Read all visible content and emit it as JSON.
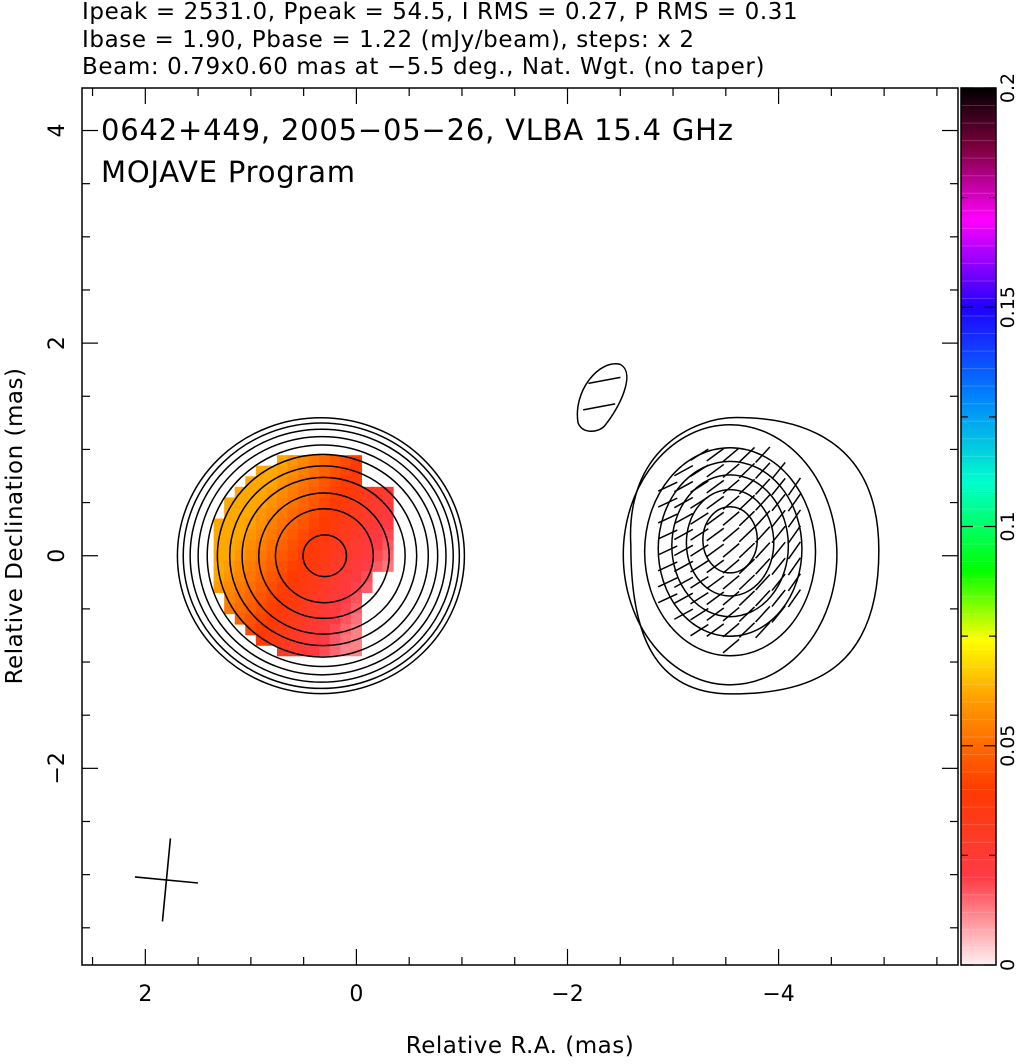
{
  "header": {
    "line1": "Ipeak = 2531.0, Ppeak = 54.5, I RMS = 0.27, P RMS = 0.31",
    "line2": "Ibase = 1.90, Pbase = 1.22 (mJy/beam), steps: x 2",
    "line3": "Beam: 0.79x0.60 mas at −5.5 deg., Nat. Wgt. (no taper)"
  },
  "plot": {
    "source_label": "0642+449, 2005−05−26, VLBA 15.4 GHz",
    "program_label": "MOJAVE Program"
  },
  "chart_data": {
    "type": "heatmap",
    "title": "0642+449, 2005−05−26, VLBA 15.4 GHz",
    "subtitle": "MOJAVE Program",
    "xlabel": "Relative R.A. (mas)",
    "ylabel": "Relative Declination (mas)",
    "xlim": [
      2.6,
      -5.7
    ],
    "ylim": [
      -3.85,
      4.4
    ],
    "x_ticks": [
      2,
      0,
      -2,
      -4
    ],
    "x_tick_labels": [
      "2",
      "0",
      "−2",
      "−4"
    ],
    "y_ticks": [
      -2,
      0,
      2,
      4
    ],
    "y_tick_labels": [
      "−2",
      "0",
      "2",
      "4"
    ],
    "x_axis_reversed": true,
    "grid": false,
    "colorbar": {
      "placement": "right",
      "range": [
        0,
        0.2
      ],
      "ticks": [
        0,
        0.05,
        0.1,
        0.15,
        0.2
      ],
      "tick_labels": [
        "0",
        "0.05",
        "0.1",
        "0.15",
        "0.2"
      ]
    },
    "stokes_i_contours": {
      "peak_mjy_per_beam": 2531.0,
      "base_mjy_per_beam": 1.9,
      "step_factor": 2,
      "rms_mjy_per_beam": 0.27
    },
    "polarization": {
      "peak_mjy_per_beam": 54.5,
      "base_mjy_per_beam": 1.22,
      "rms_mjy_per_beam": 0.31
    },
    "beam": {
      "major_mas": 0.79,
      "minor_mas": 0.6,
      "position_angle_deg": -5.5,
      "weighting": "Nat. Wgt. (no taper)",
      "center_mas": [
        1.8,
        -3.05
      ]
    },
    "components": [
      {
        "name": "total intensity core",
        "ra_mas": 0.3,
        "dec_mas": 0.0,
        "contour_radii_mas": [
          0.2,
          0.45,
          0.6,
          0.75,
          0.86,
          0.97,
          1.06,
          1.14,
          1.21,
          1.27,
          1.32
        ]
      },
      {
        "name": "polarized intensity core",
        "ra_mas": -3.55,
        "dec_mas": 0.15,
        "contour_radii_mas": [
          0.28,
          0.45,
          0.6,
          0.74,
          0.88,
          1.1
        ]
      },
      {
        "name": "small feature",
        "ra_mas": -2.35,
        "dec_mas": 1.55
      }
    ],
    "color_image_fractional_polarization": [
      {
        "ra_min_mas": -0.15,
        "ra_max_mas": 1.2,
        "dec_min_mas": -1.0,
        "dec_max_mas": 1.05,
        "level_range": [
          0.01,
          0.065
        ]
      }
    ]
  }
}
